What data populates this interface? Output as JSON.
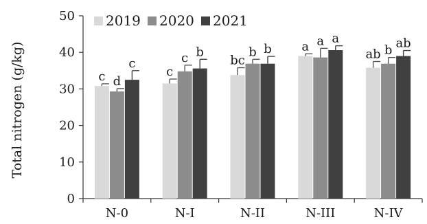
{
  "chart_data": {
    "type": "bar",
    "title": "",
    "xlabel": "",
    "ylabel": "Total nitrogen (g/kg)",
    "ylim": [
      0,
      50
    ],
    "yticks": [
      0,
      10,
      20,
      30,
      40,
      50
    ],
    "grid": false,
    "legend_position": "top-left",
    "categories": [
      "N-0",
      "N-I",
      "N-II",
      "N-III",
      "N-IV"
    ],
    "series": [
      {
        "name": "2019",
        "color": "#d9d9d9",
        "values": [
          30.8,
          31.5,
          33.8,
          39.0,
          35.8
        ],
        "errors": [
          0.6,
          1.2,
          2.0,
          0.6,
          1.7
        ],
        "labels": [
          "c",
          "c",
          "bc",
          "a",
          "ab"
        ]
      },
      {
        "name": "2020",
        "color": "#8c8c8c",
        "values": [
          29.3,
          34.8,
          36.9,
          38.6,
          36.9
        ],
        "errors": [
          0.8,
          1.7,
          1.2,
          2.5,
          1.7
        ],
        "labels": [
          "d",
          "c",
          "b",
          "a",
          "b"
        ]
      },
      {
        "name": "2021",
        "color": "#404040",
        "values": [
          32.5,
          35.6,
          36.9,
          40.6,
          39.0
        ],
        "errors": [
          2.5,
          2.5,
          2.0,
          1.2,
          1.5
        ],
        "labels": [
          "c",
          "b",
          "b",
          "a",
          "ab"
        ]
      }
    ]
  }
}
